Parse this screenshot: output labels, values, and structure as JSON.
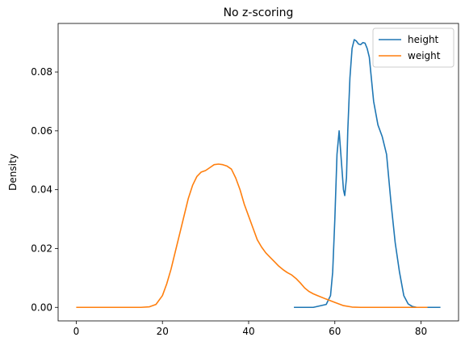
{
  "chart_data": {
    "type": "line",
    "title": "No z-scoring",
    "xlabel": "",
    "ylabel": "Density",
    "xlim": [
      -4.2,
      88.7
    ],
    "ylim": [
      -0.0046,
      0.0965
    ],
    "xticks": [
      0,
      20,
      40,
      60,
      80
    ],
    "yticks": [
      0.0,
      0.02,
      0.04,
      0.06,
      0.08
    ],
    "ytick_labels": [
      "0.00",
      "0.02",
      "0.04",
      "0.06",
      "0.08"
    ],
    "grid": false,
    "legend": "top-right",
    "series": [
      {
        "name": "height",
        "color": "#1f77b4",
        "x": [
          50.5,
          55,
          58,
          59,
          59.5,
          60,
          60.5,
          61,
          61.5,
          62,
          62.3,
          62.7,
          63,
          63.5,
          64,
          64.5,
          65,
          65.5,
          66,
          66.5,
          67,
          67.5,
          68,
          69,
          70,
          71,
          72,
          73,
          74,
          75,
          76,
          77,
          78,
          79,
          80,
          84.5
        ],
        "y": [
          0.0,
          0.0,
          0.001,
          0.004,
          0.012,
          0.03,
          0.052,
          0.06,
          0.05,
          0.04,
          0.038,
          0.044,
          0.06,
          0.078,
          0.088,
          0.091,
          0.0905,
          0.0895,
          0.0893,
          0.09,
          0.0898,
          0.088,
          0.085,
          0.07,
          0.062,
          0.058,
          0.052,
          0.036,
          0.022,
          0.012,
          0.004,
          0.0012,
          0.0003,
          0.0,
          0.0,
          0.0
        ]
      },
      {
        "name": "weight",
        "color": "#ff7f0e",
        "x": [
          0,
          10,
          15,
          17,
          18.5,
          20,
          21,
          22,
          23,
          24,
          25,
          26,
          27,
          28,
          29,
          30,
          31,
          32,
          33,
          34,
          35,
          36,
          37,
          38,
          39,
          40,
          41,
          42,
          43,
          44,
          45,
          46,
          47,
          48,
          49,
          50,
          51,
          52,
          53,
          54,
          55,
          56,
          58,
          60,
          62,
          64,
          66,
          70,
          75,
          81.5
        ],
        "y": [
          0.0,
          0.0,
          0.0,
          0.0002,
          0.001,
          0.004,
          0.008,
          0.013,
          0.019,
          0.025,
          0.031,
          0.037,
          0.0415,
          0.0445,
          0.046,
          0.0465,
          0.0475,
          0.0485,
          0.0487,
          0.0485,
          0.048,
          0.047,
          0.044,
          0.04,
          0.035,
          0.031,
          0.027,
          0.023,
          0.0205,
          0.0185,
          0.017,
          0.0155,
          0.014,
          0.0128,
          0.0118,
          0.011,
          0.0098,
          0.0083,
          0.0066,
          0.0054,
          0.0046,
          0.004,
          0.0028,
          0.0017,
          0.0006,
          0.0001,
          0.0,
          0.0,
          0.0,
          0.0
        ]
      }
    ]
  }
}
